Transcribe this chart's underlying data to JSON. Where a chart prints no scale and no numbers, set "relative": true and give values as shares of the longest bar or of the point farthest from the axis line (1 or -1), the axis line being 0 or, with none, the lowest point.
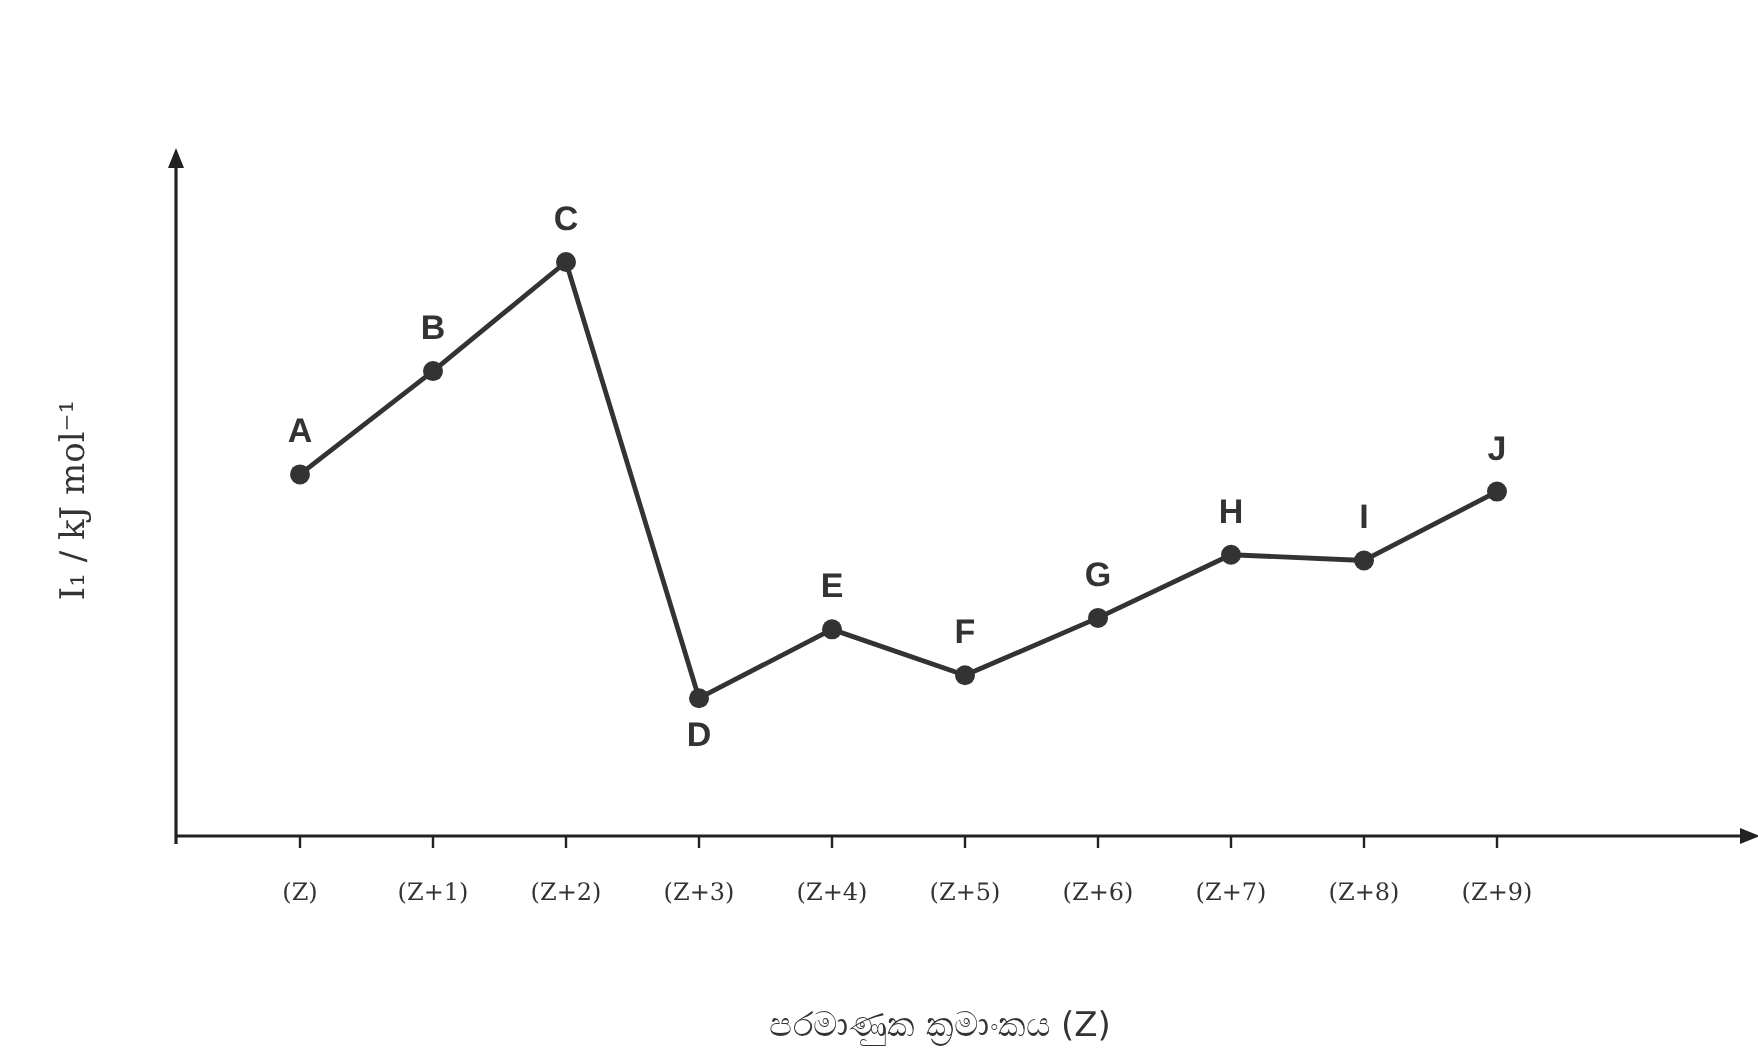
{
  "chart_data": {
    "type": "line",
    "relative": true,
    "xlabel": "පරමාණුක ක්‍රමාංකය (Z)",
    "ylabel": "I₁ / kJ mol⁻¹",
    "categories": [
      "(Z)",
      "(Z+1)",
      "(Z+2)",
      "(Z+3)",
      "(Z+4)",
      "(Z+5)",
      "(Z+6)",
      "(Z+7)",
      "(Z+8)",
      "(Z+9)"
    ],
    "values": [
      0.63,
      0.81,
      1,
      0.24,
      0.36,
      0.28,
      0.38,
      0.49,
      0.48,
      0.6
    ],
    "color": "#333333",
    "marker": "circle",
    "line_style": "solid",
    "annotations": [
      {
        "text": "A",
        "x": "(Z)",
        "y": 0.63
      },
      {
        "text": "B",
        "x": "(Z+1)",
        "y": 0.81
      },
      {
        "text": "C",
        "x": "(Z+2)",
        "y": 1
      },
      {
        "text": "D",
        "x": "(Z+3)",
        "y": 0.24
      },
      {
        "text": "E",
        "x": "(Z+4)",
        "y": 0.36
      },
      {
        "text": "F",
        "x": "(Z+5)",
        "y": 0.28
      },
      {
        "text": "G",
        "x": "(Z+6)",
        "y": 0.38
      },
      {
        "text": "H",
        "x": "(Z+7)",
        "y": 0.49
      },
      {
        "text": "I",
        "x": "(Z+8)",
        "y": 0.48
      },
      {
        "text": "J",
        "x": "(Z+9)",
        "y": 0.6
      }
    ]
  }
}
